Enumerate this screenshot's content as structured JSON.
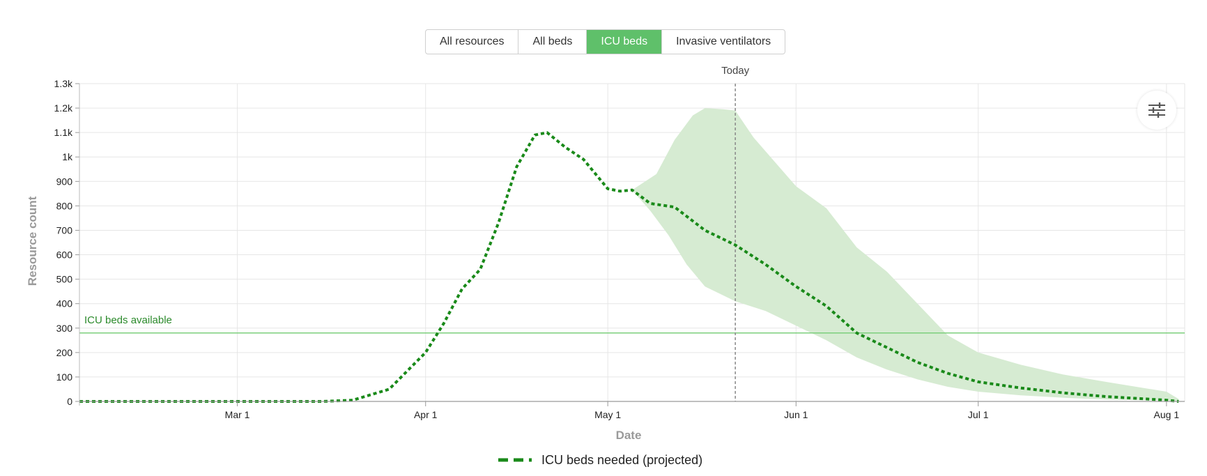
{
  "tabs": [
    {
      "label": "All resources",
      "active": false
    },
    {
      "label": "All beds",
      "active": false
    },
    {
      "label": "ICU beds",
      "active": true
    },
    {
      "label": "Invasive ventilators",
      "active": false
    }
  ],
  "colors": {
    "accent": "#5fc06a",
    "series": "#1a8a1a",
    "band": "#d6ebd2",
    "capacity": "#7ccf7c",
    "capacity_label": "#2b8a2b"
  },
  "settings_icon": "sliders-icon",
  "chart_data": {
    "type": "line",
    "xlabel": "Date",
    "ylabel": "Resource count",
    "xlim": [
      "2020-02-04",
      "2020-08-04"
    ],
    "ylim": [
      0,
      1300
    ],
    "grid": true,
    "x_ticks": [
      {
        "date": "2020-03-01",
        "label": "Mar 1"
      },
      {
        "date": "2020-04-01",
        "label": "Apr 1"
      },
      {
        "date": "2020-05-01",
        "label": "May 1"
      },
      {
        "date": "2020-06-01",
        "label": "Jun 1"
      },
      {
        "date": "2020-07-01",
        "label": "Jul 1"
      },
      {
        "date": "2020-08-01",
        "label": "Aug 1"
      }
    ],
    "y_ticks": [
      {
        "value": 0,
        "label": "0"
      },
      {
        "value": 100,
        "label": "100"
      },
      {
        "value": 200,
        "label": "200"
      },
      {
        "value": 300,
        "label": "300"
      },
      {
        "value": 400,
        "label": "400"
      },
      {
        "value": 500,
        "label": "500"
      },
      {
        "value": 600,
        "label": "600"
      },
      {
        "value": 700,
        "label": "700"
      },
      {
        "value": 800,
        "label": "800"
      },
      {
        "value": 900,
        "label": "900"
      },
      {
        "value": 1000,
        "label": "1k"
      },
      {
        "value": 1100,
        "label": "1.1k"
      },
      {
        "value": 1200,
        "label": "1.2k"
      },
      {
        "value": 1300,
        "label": "1.3k"
      }
    ],
    "series": [
      {
        "name": "ICU beds needed (projected)",
        "style": "dashed",
        "points": [
          [
            "2020-02-04",
            0
          ],
          [
            "2020-03-01",
            0
          ],
          [
            "2020-03-15",
            0
          ],
          [
            "2020-03-20",
            5
          ],
          [
            "2020-03-26",
            50
          ],
          [
            "2020-04-01",
            200
          ],
          [
            "2020-04-04",
            320
          ],
          [
            "2020-04-07",
            460
          ],
          [
            "2020-04-10",
            540
          ],
          [
            "2020-04-13",
            730
          ],
          [
            "2020-04-16",
            960
          ],
          [
            "2020-04-19",
            1090
          ],
          [
            "2020-04-21",
            1100
          ],
          [
            "2020-04-24",
            1040
          ],
          [
            "2020-04-27",
            990
          ],
          [
            "2020-05-01",
            870
          ],
          [
            "2020-05-03",
            860
          ],
          [
            "2020-05-05",
            865
          ],
          [
            "2020-05-08",
            810
          ],
          [
            "2020-05-12",
            795
          ],
          [
            "2020-05-17",
            700
          ],
          [
            "2020-05-22",
            640
          ],
          [
            "2020-05-27",
            560
          ],
          [
            "2020-06-01",
            470
          ],
          [
            "2020-06-06",
            390
          ],
          [
            "2020-06-11",
            280
          ],
          [
            "2020-06-16",
            220
          ],
          [
            "2020-06-21",
            160
          ],
          [
            "2020-06-26",
            115
          ],
          [
            "2020-07-01",
            80
          ],
          [
            "2020-07-08",
            55
          ],
          [
            "2020-07-15",
            35
          ],
          [
            "2020-07-22",
            20
          ],
          [
            "2020-08-01",
            5
          ],
          [
            "2020-08-03",
            0
          ]
        ]
      }
    ],
    "uncertainty_band": {
      "upper": [
        [
          "2020-05-05",
          865
        ],
        [
          "2020-05-09",
          930
        ],
        [
          "2020-05-12",
          1070
        ],
        [
          "2020-05-15",
          1170
        ],
        [
          "2020-05-17",
          1200
        ],
        [
          "2020-05-20",
          1195
        ],
        [
          "2020-05-22",
          1190
        ],
        [
          "2020-05-25",
          1080
        ],
        [
          "2020-06-01",
          880
        ],
        [
          "2020-06-06",
          790
        ],
        [
          "2020-06-11",
          630
        ],
        [
          "2020-06-16",
          530
        ],
        [
          "2020-06-21",
          400
        ],
        [
          "2020-06-26",
          270
        ],
        [
          "2020-07-01",
          200
        ],
        [
          "2020-07-08",
          150
        ],
        [
          "2020-07-15",
          110
        ],
        [
          "2020-07-22",
          80
        ],
        [
          "2020-08-01",
          40
        ],
        [
          "2020-08-03",
          10
        ]
      ],
      "lower": [
        [
          "2020-08-03",
          0
        ],
        [
          "2020-08-01",
          3
        ],
        [
          "2020-07-22",
          8
        ],
        [
          "2020-07-15",
          15
        ],
        [
          "2020-07-08",
          25
        ],
        [
          "2020-07-01",
          40
        ],
        [
          "2020-06-26",
          60
        ],
        [
          "2020-06-21",
          90
        ],
        [
          "2020-06-16",
          130
        ],
        [
          "2020-06-11",
          180
        ],
        [
          "2020-06-06",
          250
        ],
        [
          "2020-06-01",
          310
        ],
        [
          "2020-05-27",
          370
        ],
        [
          "2020-05-22",
          410
        ],
        [
          "2020-05-17",
          470
        ],
        [
          "2020-05-14",
          560
        ],
        [
          "2020-05-11",
          680
        ],
        [
          "2020-05-08",
          780
        ],
        [
          "2020-05-05",
          865
        ]
      ]
    },
    "reference_lines": [
      {
        "type": "horizontal",
        "value": 280,
        "label": "ICU beds available"
      },
      {
        "type": "vertical",
        "date": "2020-05-22",
        "label": "Today"
      }
    ],
    "legend": {
      "position": "bottom",
      "entries": [
        "ICU beds needed (projected)"
      ]
    }
  }
}
